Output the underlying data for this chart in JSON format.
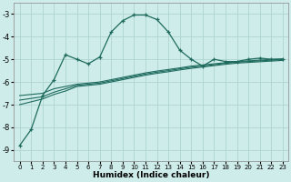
{
  "xlabel": "Humidex (Indice chaleur)",
  "xlim": [
    -0.5,
    23.5
  ],
  "ylim": [
    -9.5,
    -2.5
  ],
  "yticks": [
    -9,
    -8,
    -7,
    -6,
    -5,
    -4,
    -3
  ],
  "xticks": [
    0,
    1,
    2,
    3,
    4,
    5,
    6,
    7,
    8,
    9,
    10,
    11,
    12,
    13,
    14,
    15,
    16,
    17,
    18,
    19,
    20,
    21,
    22,
    23
  ],
  "bg_color": "#ceecea",
  "grid_color": "#aed4d0",
  "line_color": "#1e6b5e",
  "curve1_x": [
    0,
    1,
    2,
    3,
    4,
    5,
    6,
    7,
    8,
    9,
    10,
    11,
    12,
    13,
    14,
    15,
    16,
    17,
    18,
    19,
    20,
    21,
    22,
    23
  ],
  "curve1_y": [
    -8.8,
    -8.1,
    -6.6,
    -5.9,
    -4.8,
    -5.0,
    -5.2,
    -4.9,
    -3.8,
    -3.3,
    -3.05,
    -3.05,
    -3.25,
    -3.8,
    -4.6,
    -5.0,
    -5.3,
    -5.0,
    -5.1,
    -5.1,
    -5.0,
    -4.95,
    -5.0,
    -5.0
  ],
  "curve2_x": [
    0,
    2,
    3,
    4,
    5,
    6,
    7,
    8,
    9,
    10,
    11,
    12,
    13,
    14,
    15,
    16,
    17,
    18,
    19,
    20,
    21,
    22,
    23
  ],
  "curve2_y": [
    -6.6,
    -6.5,
    -6.3,
    -6.2,
    -6.1,
    -6.05,
    -6.0,
    -5.9,
    -5.8,
    -5.7,
    -5.6,
    -5.52,
    -5.45,
    -5.38,
    -5.3,
    -5.25,
    -5.2,
    -5.15,
    -5.1,
    -5.07,
    -5.04,
    -5.01,
    -4.98
  ],
  "curve3_x": [
    0,
    2,
    3,
    4,
    5,
    6,
    7,
    8,
    9,
    10,
    11,
    12,
    13,
    14,
    15,
    16,
    17,
    18,
    19,
    20,
    21,
    22,
    23
  ],
  "curve3_y": [
    -6.8,
    -6.65,
    -6.45,
    -6.3,
    -6.15,
    -6.1,
    -6.05,
    -5.95,
    -5.85,
    -5.75,
    -5.65,
    -5.57,
    -5.5,
    -5.42,
    -5.35,
    -5.3,
    -5.24,
    -5.18,
    -5.13,
    -5.1,
    -5.07,
    -5.04,
    -5.01
  ],
  "curve4_x": [
    0,
    2,
    3,
    4,
    5,
    6,
    7,
    8,
    9,
    10,
    11,
    12,
    13,
    14,
    15,
    16,
    17,
    18,
    19,
    20,
    21,
    22,
    23
  ],
  "curve4_y": [
    -7.0,
    -6.75,
    -6.55,
    -6.4,
    -6.2,
    -6.15,
    -6.1,
    -6.0,
    -5.9,
    -5.8,
    -5.7,
    -5.62,
    -5.55,
    -5.47,
    -5.4,
    -5.34,
    -5.28,
    -5.22,
    -5.17,
    -5.14,
    -5.11,
    -5.08,
    -5.05
  ]
}
